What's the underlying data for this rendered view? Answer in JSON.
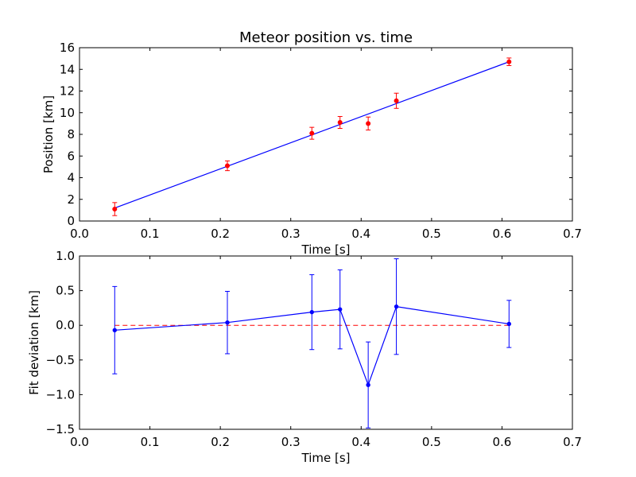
{
  "colors": {
    "fit_line": "#0000ff",
    "measurements": "#ff0000",
    "zero_line": "#ff0000",
    "deviation": "#0000ff",
    "axes": "#000000",
    "background": "#ffffff"
  },
  "chart_data": [
    {
      "type": "scatter",
      "title": "Meteor position vs. time",
      "xlabel": "Time [s]",
      "ylabel": "Position [km]",
      "xlim": [
        0.0,
        0.7
      ],
      "ylim": [
        0,
        16
      ],
      "xticks": [
        "0.0",
        "0.1",
        "0.2",
        "0.3",
        "0.4",
        "0.5",
        "0.6",
        "0.7"
      ],
      "yticks": [
        "0",
        "2",
        "4",
        "6",
        "8",
        "10",
        "12",
        "14",
        "16"
      ],
      "grid": false,
      "points": {
        "x": [
          0.05,
          0.21,
          0.33,
          0.37,
          0.41,
          0.45,
          0.61
        ],
        "y": [
          1.1,
          5.1,
          8.1,
          9.1,
          9.0,
          11.1,
          14.7
        ],
        "yerr": [
          0.6,
          0.45,
          0.55,
          0.55,
          0.6,
          0.7,
          0.35
        ]
      },
      "fit_line": {
        "x": [
          0.05,
          0.61
        ],
        "y": [
          1.2,
          14.7
        ]
      }
    },
    {
      "type": "line",
      "xlabel": "Time [s]",
      "ylabel": "Fit deviation [km]",
      "xlim": [
        0.0,
        0.7
      ],
      "ylim": [
        -1.5,
        1.0
      ],
      "xticks": [
        "0.0",
        "0.1",
        "0.2",
        "0.3",
        "0.4",
        "0.5",
        "0.6",
        "0.7"
      ],
      "yticks": [
        "−1.5",
        "−1.0",
        "−0.5",
        "0.0",
        "0.5",
        "1.0"
      ],
      "grid": false,
      "deviation": {
        "x": [
          0.05,
          0.21,
          0.33,
          0.37,
          0.41,
          0.45,
          0.61
        ],
        "y": [
          -0.07,
          0.04,
          0.19,
          0.23,
          -0.86,
          0.27,
          0.02
        ],
        "yerr": [
          0.63,
          0.45,
          0.54,
          0.57,
          0.62,
          0.69,
          0.34
        ]
      },
      "zero_line": {
        "x": [
          0.05,
          0.61
        ],
        "y": [
          0.0,
          0.0
        ]
      }
    }
  ]
}
